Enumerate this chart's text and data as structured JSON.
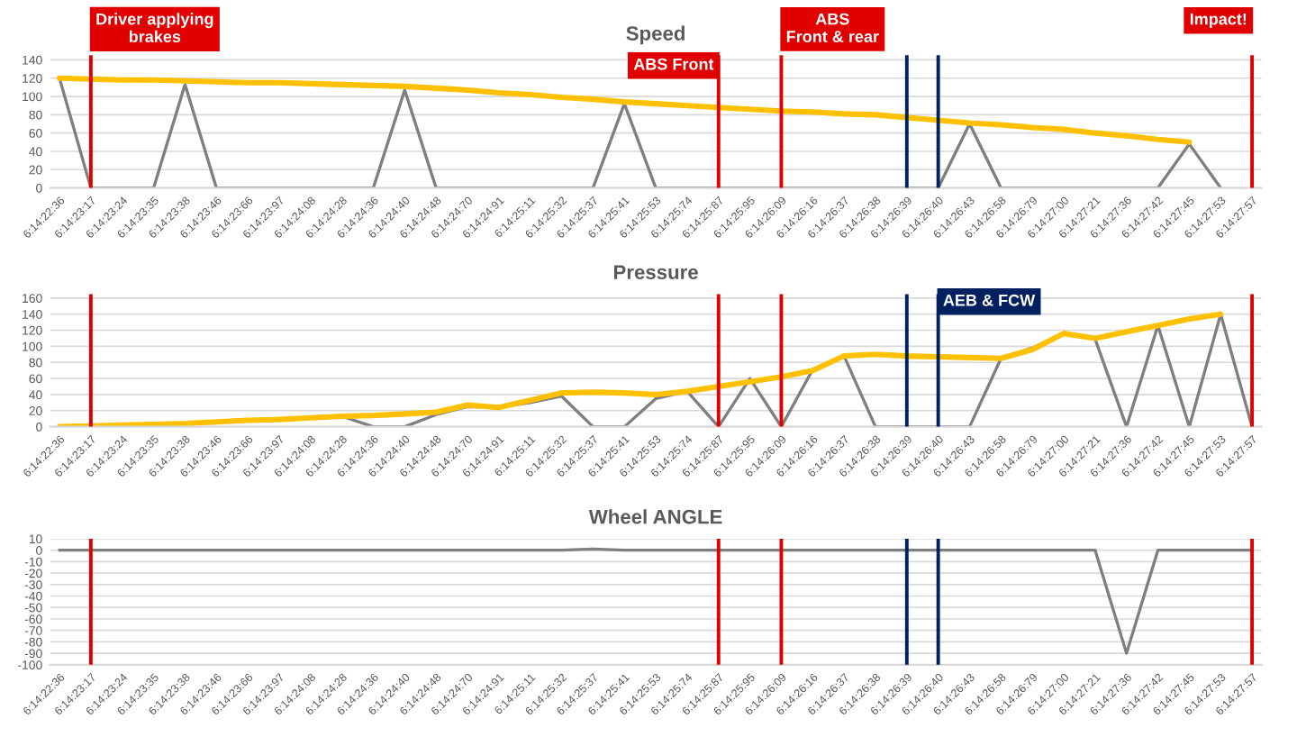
{
  "chart_data": [
    {
      "type": "line",
      "title": "Speed",
      "categories": [
        "6:14:22:36",
        "6:14:23:17",
        "6:14:23:24",
        "6:14:23:35",
        "6:14:23:38",
        "6:14:23:46",
        "6:14:23:66",
        "6:14:23:97",
        "6:14:24:08",
        "6:14:24:28",
        "6:14:24:36",
        "6:14:24:40",
        "6:14:24:48",
        "6:14:24:70",
        "6:14:24:91",
        "6:14:25:11",
        "6:14:25:32",
        "6:14:25:37",
        "6:14:25:41",
        "6:14:25:53",
        "6:14:25:74",
        "6:14:25:87",
        "6:14:25:95",
        "6:14:26:09",
        "6:14:26:16",
        "6:14:26:37",
        "6:14:26:38",
        "6:14:26:39",
        "6:14:26:40",
        "6:14:26:43",
        "6:14:26:58",
        "6:14:26:79",
        "6:14:27:00",
        "6:14:27:21",
        "6:14:27:36",
        "6:14:27:42",
        "6:14:27:45",
        "6:14:27:53",
        "6:14:27:57"
      ],
      "series": [
        {
          "color": "#7f7f7f",
          "values": [
            120,
            0,
            0,
            0,
            113,
            0,
            0,
            0,
            0,
            0,
            0,
            107,
            0,
            0,
            0,
            0,
            0,
            0,
            92,
            0,
            0,
            0,
            0,
            0,
            0,
            0,
            0,
            0,
            0,
            70,
            0,
            0,
            0,
            0,
            0,
            0,
            48,
            0,
            null
          ]
        },
        {
          "color": "#ffc000",
          "values": [
            120,
            119,
            118,
            118,
            117,
            116,
            115,
            115,
            114,
            113,
            112,
            111,
            109,
            107,
            104,
            102,
            99,
            97,
            94,
            92,
            90,
            88,
            86,
            84,
            83,
            81,
            80,
            77,
            74,
            71,
            69,
            66,
            64,
            60,
            57,
            53,
            50,
            null,
            null
          ]
        }
      ],
      "ylim": [
        0,
        145
      ],
      "yticks": [
        0,
        20,
        40,
        60,
        80,
        100,
        120,
        140
      ],
      "grid": "y",
      "ref_lines": [
        {
          "axis": "x",
          "value": "6:14:23:17",
          "label": "Driver applying\nbrakes",
          "color": "#e00000"
        },
        {
          "axis": "x",
          "value": "6:14:25:87",
          "label": "ABS Front",
          "color": "#e00000"
        },
        {
          "axis": "x",
          "value": "6:14:26:09",
          "label": "ABS\nFront & rear",
          "color": "#e00000"
        },
        {
          "axis": "x",
          "value": "6:14:26:39",
          "color": "#002060"
        },
        {
          "axis": "x",
          "value": "6:14:26:40",
          "color": "#002060"
        },
        {
          "axis": "x",
          "value": "6:14:27:57",
          "label": "Impact!",
          "color": "#e00000"
        }
      ]
    },
    {
      "type": "line",
      "title": "Pressure",
      "categories": [
        "6:14:22:36",
        "6:14:23:17",
        "6:14:23:24",
        "6:14:23:35",
        "6:14:23:38",
        "6:14:23:46",
        "6:14:23:66",
        "6:14:23:97",
        "6:14:24:08",
        "6:14:24:28",
        "6:14:24:36",
        "6:14:24:40",
        "6:14:24:48",
        "6:14:24:70",
        "6:14:24:91",
        "6:14:25:11",
        "6:14:25:32",
        "6:14:25:37",
        "6:14:25:41",
        "6:14:25:53",
        "6:14:25:74",
        "6:14:25:87",
        "6:14:25:95",
        "6:14:26:09",
        "6:14:26:16",
        "6:14:26:37",
        "6:14:26:38",
        "6:14:26:39",
        "6:14:26:40",
        "6:14:26:43",
        "6:14:26:58",
        "6:14:26:79",
        "6:14:27:00",
        "6:14:27:21",
        "6:14:27:36",
        "6:14:27:42",
        "6:14:27:45",
        "6:14:27:53",
        "6:14:27:57"
      ],
      "series": [
        {
          "color": "#7f7f7f",
          "values": [
            null,
            null,
            null,
            null,
            null,
            null,
            null,
            null,
            11,
            13,
            0,
            0,
            15,
            25,
            24,
            30,
            38,
            0,
            0,
            35,
            44,
            0,
            60,
            0,
            71,
            88,
            0,
            0,
            0,
            0,
            85,
            98,
            116,
            109,
            0,
            126,
            0,
            140,
            0
          ]
        },
        {
          "color": "#ffc000",
          "values": [
            0,
            1,
            2,
            3,
            4,
            6,
            8,
            9,
            11,
            13,
            14,
            16,
            18,
            27,
            24,
            33,
            42,
            43,
            42,
            40,
            44,
            50,
            56,
            62,
            70,
            88,
            90,
            88,
            87,
            86,
            85,
            96,
            116,
            110,
            118,
            126,
            134,
            140,
            null
          ]
        }
      ],
      "ylim": [
        0,
        165
      ],
      "yticks": [
        0,
        20,
        40,
        60,
        80,
        100,
        120,
        140,
        160
      ],
      "grid": "y",
      "ref_lines": [
        {
          "axis": "x",
          "value": "6:14:23:17",
          "color": "#e00000"
        },
        {
          "axis": "x",
          "value": "6:14:25:87",
          "color": "#e00000"
        },
        {
          "axis": "x",
          "value": "6:14:26:09",
          "color": "#e00000"
        },
        {
          "axis": "x",
          "value": "6:14:26:39",
          "color": "#002060"
        },
        {
          "axis": "x",
          "value": "6:14:26:40",
          "label": "AEB & FCW",
          "color": "#002060"
        },
        {
          "axis": "x",
          "value": "6:14:27:57",
          "color": "#e00000"
        }
      ]
    },
    {
      "type": "line",
      "title": "Wheel ANGLE",
      "categories": [
        "6:14:22:36",
        "6:14:23:17",
        "6:14:23:24",
        "6:14:23:35",
        "6:14:23:38",
        "6:14:23:46",
        "6:14:23:66",
        "6:14:23:97",
        "6:14:24:08",
        "6:14:24:28",
        "6:14:24:36",
        "6:14:24:40",
        "6:14:24:48",
        "6:14:24:70",
        "6:14:24:91",
        "6:14:25:11",
        "6:14:25:32",
        "6:14:25:37",
        "6:14:25:41",
        "6:14:25:53",
        "6:14:25:74",
        "6:14:25:87",
        "6:14:25:95",
        "6:14:26:09",
        "6:14:26:16",
        "6:14:26:37",
        "6:14:26:38",
        "6:14:26:39",
        "6:14:26:40",
        "6:14:26:43",
        "6:14:26:58",
        "6:14:26:79",
        "6:14:27:00",
        "6:14:27:21",
        "6:14:27:36",
        "6:14:27:42",
        "6:14:27:45",
        "6:14:27:53",
        "6:14:27:57"
      ],
      "series": [
        {
          "color": "#7f7f7f",
          "values": [
            0,
            0,
            0,
            0,
            0,
            0,
            0,
            0,
            0,
            0,
            0,
            0,
            0,
            0,
            0,
            0,
            0,
            1,
            0,
            0,
            0,
            0,
            0,
            0,
            0,
            0,
            0,
            0,
            0,
            0,
            0,
            0,
            0,
            0,
            -90,
            0,
            0,
            0,
            0
          ]
        }
      ],
      "ylim": [
        -100,
        10
      ],
      "yticks": [
        {
          "value": 10,
          "label": "10"
        },
        {
          "value": 0,
          "label": "0"
        },
        {
          "value": -10,
          "label": "-10"
        },
        {
          "value": -20,
          "label": "-20"
        },
        {
          "value": -30,
          "label": "-30"
        },
        {
          "value": -40,
          "label": "-40"
        },
        {
          "value": -50,
          "label": "-50"
        },
        {
          "value": -60,
          "label": "-60"
        },
        {
          "value": -70,
          "label": "-70"
        },
        {
          "value": -80,
          "label": "-80"
        },
        {
          "value": -90,
          "label": "-90"
        },
        {
          "value": -100,
          "label": "-100"
        }
      ],
      "grid": "y",
      "ref_lines": [
        {
          "axis": "x",
          "value": "6:14:23:17",
          "color": "#e00000"
        },
        {
          "axis": "x",
          "value": "6:14:25:87",
          "color": "#e00000"
        },
        {
          "axis": "x",
          "value": "6:14:26:09",
          "color": "#e00000"
        },
        {
          "axis": "x",
          "value": "6:14:26:39",
          "color": "#002060"
        },
        {
          "axis": "x",
          "value": "6:14:26:40",
          "color": "#002060"
        },
        {
          "axis": "x",
          "value": "6:14:27:57",
          "color": "#e00000"
        }
      ]
    }
  ]
}
